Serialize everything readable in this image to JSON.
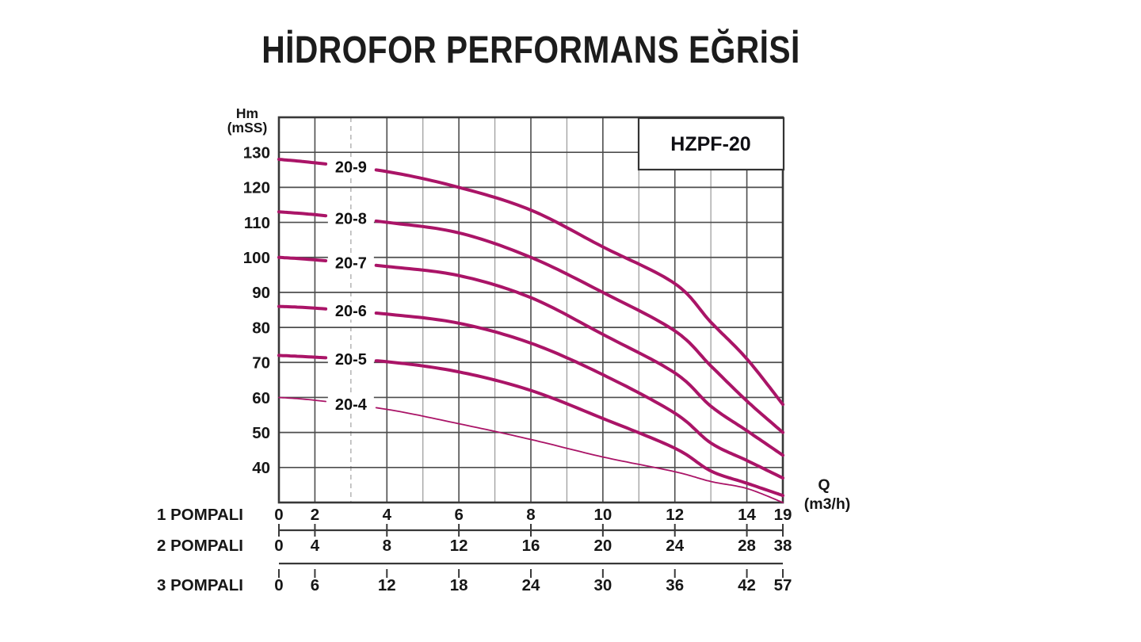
{
  "title": "HİDROFOR PERFORMANS EĞRİSİ",
  "model_label": "HZPF-20",
  "y_axis": {
    "unit_line1": "Hm",
    "unit_line2": "(mSS)",
    "tick_labels": [
      "130",
      "120",
      "110",
      "100",
      "90",
      "80",
      "70",
      "60",
      "50",
      "40"
    ]
  },
  "x_axis": {
    "unit_line1": "Q",
    "unit_line2": "(m3/h)"
  },
  "chart_data": {
    "type": "line",
    "title": "HİDROFOR PERFORMANS EĞRİSİ",
    "model": "HZPF-20",
    "ylabel": "Hm (mSS)",
    "xlabel": "Q (m3/h)",
    "y_range": [
      30,
      140
    ],
    "y_grid_step": 10,
    "y_tick_values": [
      130,
      120,
      110,
      100,
      90,
      80,
      70,
      60,
      50,
      40
    ],
    "x_scale_note": "non-linear: one grid cell spans 0-2, one cell per unit from 2-14, one cell spans 14-19",
    "x_tick_cells": [
      0,
      1,
      3,
      5,
      7,
      9,
      11,
      13,
      14
    ],
    "grid_cells_x": 14,
    "dashed_vertical_cell": 2,
    "x_scales": [
      {
        "pumps": 1,
        "label": "1 POMPALI",
        "tick_labels": [
          "0",
          "2",
          "4",
          "6",
          "8",
          "10",
          "12",
          "14",
          "19"
        ],
        "ruler": "none"
      },
      {
        "pumps": 2,
        "label": "2 POMPALI",
        "tick_labels": [
          "0",
          "4",
          "8",
          "12",
          "16",
          "20",
          "24",
          "28",
          "38"
        ],
        "ruler": "cross-ticks"
      },
      {
        "pumps": 3,
        "label": "3 POMPALI",
        "tick_labels": [
          "0",
          "6",
          "12",
          "18",
          "24",
          "30",
          "36",
          "42",
          "57"
        ],
        "ruler": "ticks-below"
      }
    ],
    "series": [
      {
        "name": "20-9",
        "thick": true,
        "points": [
          [
            0,
            128
          ],
          [
            2,
            127
          ],
          [
            4,
            124.5
          ],
          [
            6,
            120
          ],
          [
            8,
            113.5
          ],
          [
            10,
            103
          ],
          [
            12,
            92.5
          ],
          [
            13,
            81.5
          ],
          [
            14,
            71
          ],
          [
            19,
            58
          ]
        ]
      },
      {
        "name": "20-8",
        "thick": true,
        "points": [
          [
            0,
            113
          ],
          [
            2,
            112.2
          ],
          [
            4,
            110
          ],
          [
            6,
            107
          ],
          [
            8,
            100
          ],
          [
            10,
            90
          ],
          [
            12,
            79
          ],
          [
            13,
            69
          ],
          [
            14,
            59
          ],
          [
            19,
            50
          ]
        ]
      },
      {
        "name": "20-7",
        "thick": true,
        "points": [
          [
            0,
            100
          ],
          [
            2,
            99.3
          ],
          [
            4,
            97.4
          ],
          [
            6,
            94.8
          ],
          [
            8,
            88.5
          ],
          [
            10,
            78
          ],
          [
            12,
            67
          ],
          [
            13,
            57.5
          ],
          [
            14,
            50.5
          ],
          [
            19,
            43.5
          ]
        ]
      },
      {
        "name": "20-6",
        "thick": true,
        "points": [
          [
            0,
            86
          ],
          [
            2,
            85.5
          ],
          [
            4,
            83.8
          ],
          [
            6,
            81.2
          ],
          [
            8,
            75.5
          ],
          [
            10,
            66.5
          ],
          [
            12,
            55.5
          ],
          [
            13,
            47
          ],
          [
            14,
            42
          ],
          [
            19,
            37
          ]
        ]
      },
      {
        "name": "20-5",
        "thick": true,
        "points": [
          [
            0,
            72
          ],
          [
            2,
            71.5
          ],
          [
            4,
            70.2
          ],
          [
            6,
            67.3
          ],
          [
            8,
            62
          ],
          [
            10,
            54
          ],
          [
            12,
            45.5
          ],
          [
            13,
            39
          ],
          [
            14,
            35.5
          ],
          [
            19,
            32
          ]
        ]
      },
      {
        "name": "20-4",
        "thick": false,
        "points": [
          [
            0,
            60
          ],
          [
            2,
            59.2
          ],
          [
            4,
            56.6
          ],
          [
            6,
            52.5
          ],
          [
            8,
            48
          ],
          [
            10,
            43
          ],
          [
            12,
            38.8
          ],
          [
            13,
            36
          ],
          [
            14,
            34
          ],
          [
            19,
            30
          ]
        ]
      }
    ],
    "label_anchor_q": 3,
    "label_gap_q": [
      2.3,
      3.7
    ],
    "legend_position": "top-right-box",
    "grid": true,
    "colors": {
      "curve": "#AA1467",
      "grid_major": "#4d4d4d",
      "grid_minor": "#9f9f9f",
      "grid_dashed": "#a8a8a8",
      "border": "#383838",
      "text": "#161616",
      "background": "#ffffff"
    }
  }
}
